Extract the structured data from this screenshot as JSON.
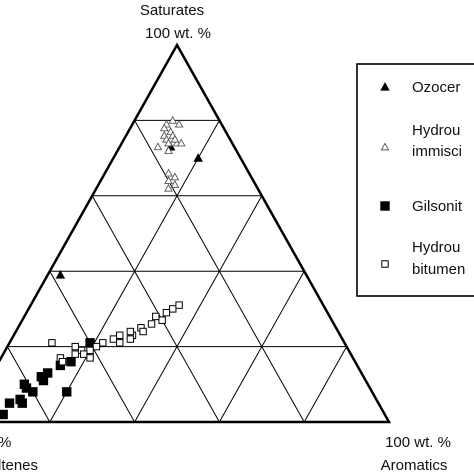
{
  "chart_data": {
    "type": "scatter",
    "subtype": "ternary",
    "vertex_labels": {
      "top": [
        "Saturates",
        "100 wt. %"
      ],
      "left": [
        "%",
        "ltenes"
      ],
      "right": [
        "100 wt. %",
        "Aromatics"
      ]
    },
    "grid_divisions": 5,
    "legend": {
      "placement": "right",
      "entries": [
        {
          "marker": "filled-triangle",
          "label": "Ozocer"
        },
        {
          "marker": "open-triangle",
          "label": [
            "Hydrou",
            "immisci"
          ]
        },
        {
          "marker": "filled-square",
          "label": "Gilsonit"
        },
        {
          "marker": "open-square",
          "label": [
            "Hydrou",
            "bitumen"
          ]
        }
      ]
    },
    "series": [
      {
        "marker": "filled-triangle",
        "points": [
          {
            "saturates": 73,
            "aromatics": 12
          },
          {
            "saturates": 70,
            "aromatics": 20
          },
          {
            "saturates": 39,
            "aromatics": 3
          }
        ]
      },
      {
        "marker": "open-triangle",
        "points": [
          {
            "saturates": 79,
            "aromatics": 8
          },
          {
            "saturates": 80,
            "aromatics": 9
          },
          {
            "saturates": 79,
            "aromatics": 11
          },
          {
            "saturates": 78,
            "aromatics": 8
          },
          {
            "saturates": 77,
            "aromatics": 10
          },
          {
            "saturates": 76,
            "aromatics": 11
          },
          {
            "saturates": 76,
            "aromatics": 9
          },
          {
            "saturates": 75,
            "aromatics": 10
          },
          {
            "saturates": 74,
            "aromatics": 11
          },
          {
            "saturates": 74,
            "aromatics": 13
          },
          {
            "saturates": 73,
            "aromatics": 9
          },
          {
            "saturates": 72,
            "aromatics": 12
          },
          {
            "saturates": 75,
            "aromatics": 12
          },
          {
            "saturates": 74,
            "aromatics": 14
          },
          {
            "saturates": 66,
            "aromatics": 15
          },
          {
            "saturates": 65,
            "aromatics": 17
          },
          {
            "saturates": 64,
            "aromatics": 16
          },
          {
            "saturates": 63,
            "aromatics": 18
          },
          {
            "saturates": 62,
            "aromatics": 17
          }
        ]
      },
      {
        "marker": "filled-square",
        "points": [
          {
            "saturates": 21,
            "aromatics": 19
          },
          {
            "saturates": 16,
            "aromatics": 17
          },
          {
            "saturates": 15,
            "aromatics": 15
          },
          {
            "saturates": 13,
            "aromatics": 13
          },
          {
            "saturates": 12,
            "aromatics": 12
          },
          {
            "saturates": 11,
            "aromatics": 13
          },
          {
            "saturates": 10,
            "aromatics": 9
          },
          {
            "saturates": 9,
            "aromatics": 10
          },
          {
            "saturates": 8,
            "aromatics": 12
          },
          {
            "saturates": 6,
            "aromatics": 10
          },
          {
            "saturates": 5,
            "aromatics": 8
          },
          {
            "saturates": 5,
            "aromatics": 11
          },
          {
            "saturates": 8,
            "aromatics": 20
          },
          {
            "saturates": 3,
            "aromatics": 5
          },
          {
            "saturates": 2,
            "aromatics": 8
          }
        ]
      },
      {
        "marker": "open-square",
        "points": [
          {
            "saturates": 30,
            "aromatics": 34
          },
          {
            "saturates": 31,
            "aromatics": 35
          },
          {
            "saturates": 29,
            "aromatics": 33
          },
          {
            "saturates": 28,
            "aromatics": 31
          },
          {
            "saturates": 27,
            "aromatics": 33
          },
          {
            "saturates": 25,
            "aromatics": 29
          },
          {
            "saturates": 24,
            "aromatics": 30
          },
          {
            "saturates": 23,
            "aromatics": 28
          },
          {
            "saturates": 24,
            "aromatics": 27
          },
          {
            "saturates": 23,
            "aromatics": 25
          },
          {
            "saturates": 22,
            "aromatics": 24
          },
          {
            "saturates": 21,
            "aromatics": 22
          },
          {
            "saturates": 20,
            "aromatics": 21
          },
          {
            "saturates": 19,
            "aromatics": 20
          },
          {
            "saturates": 19,
            "aromatics": 18
          },
          {
            "saturates": 20,
            "aromatics": 16
          },
          {
            "saturates": 18,
            "aromatics": 17
          },
          {
            "saturates": 17,
            "aromatics": 14
          },
          {
            "saturates": 16,
            "aromatics": 15
          },
          {
            "saturates": 21,
            "aromatics": 10
          },
          {
            "saturates": 21,
            "aromatics": 26
          },
          {
            "saturates": 22,
            "aromatics": 28
          },
          {
            "saturates": 26,
            "aromatics": 31
          },
          {
            "saturates": 18,
            "aromatics": 19
          },
          {
            "saturates": 17,
            "aromatics": 21
          }
        ]
      }
    ]
  }
}
